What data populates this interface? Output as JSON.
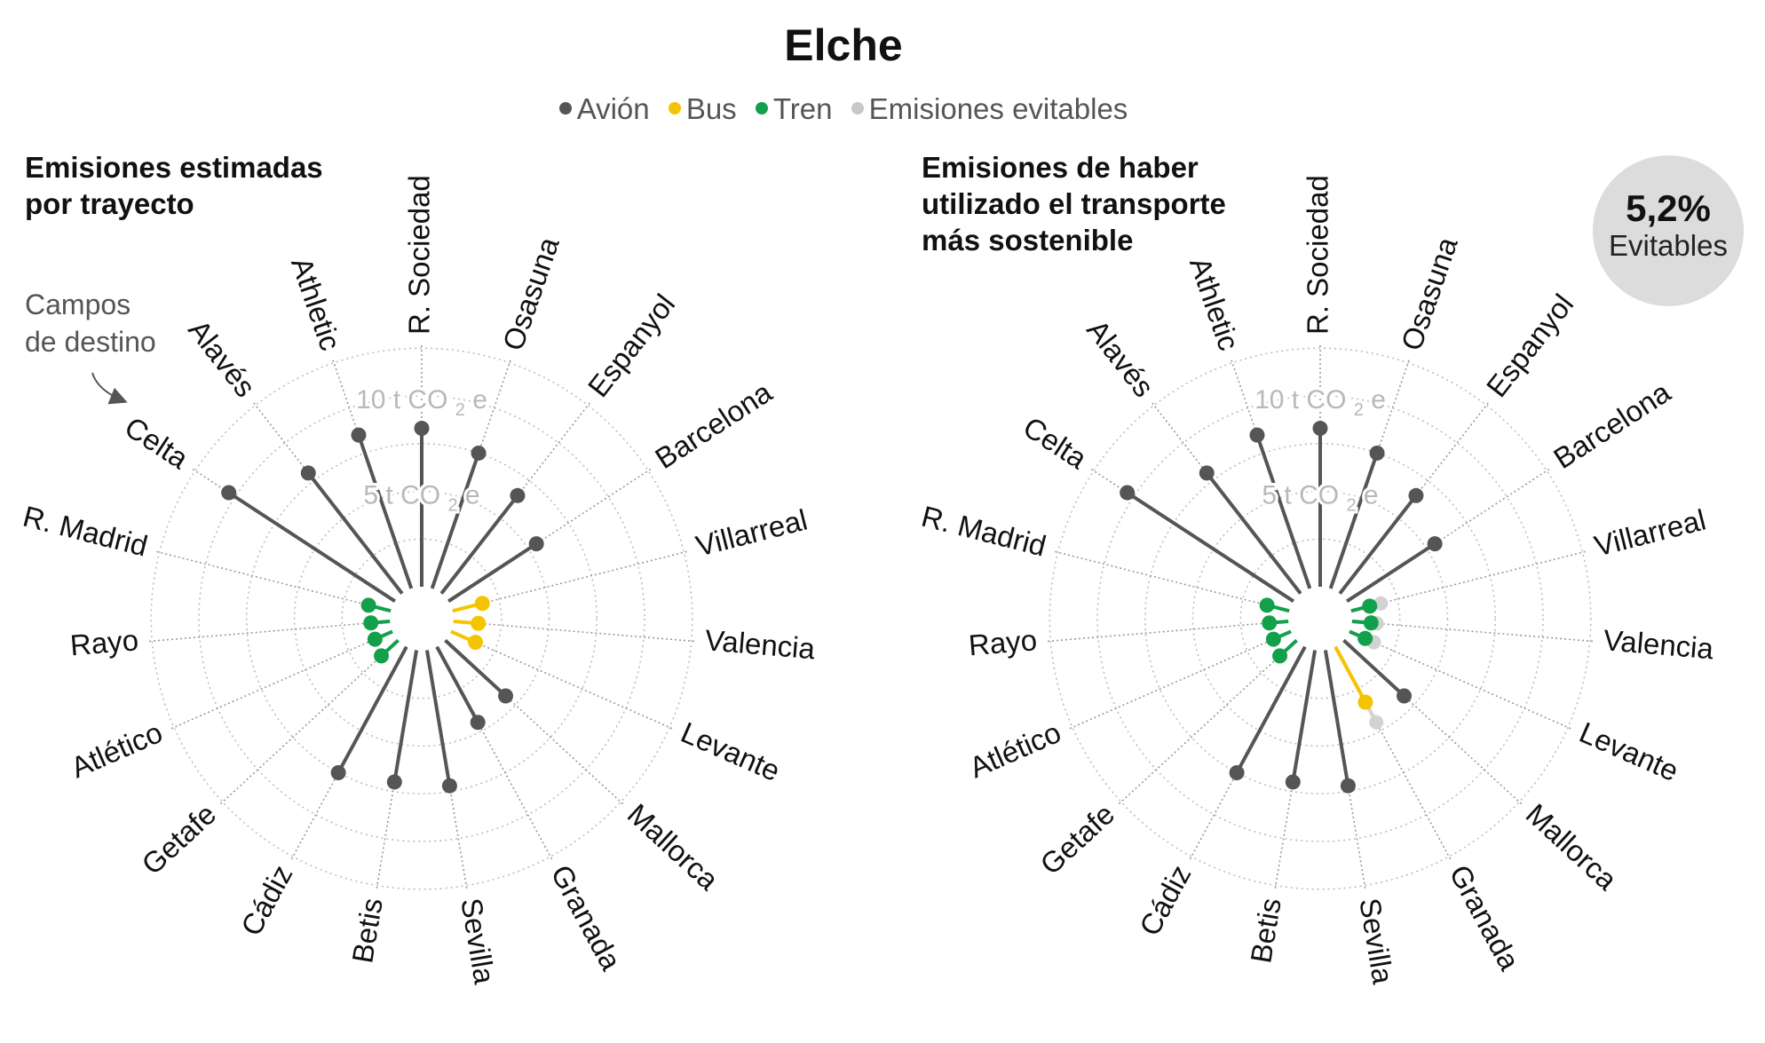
{
  "title": "Elche",
  "legend": [
    {
      "label": "Avión",
      "color": "#555555"
    },
    {
      "label": "Bus",
      "color": "#f5c400"
    },
    {
      "label": "Tren",
      "color": "#13a04a"
    },
    {
      "label": "Emisiones evitables",
      "color": "#c8c8c8"
    }
  ],
  "panels": {
    "left": {
      "heading": "Emisiones estimadas\npor trayecto"
    },
    "right": {
      "heading": "Emisiones de haber\nutilizado el transporte\nmás sostenible"
    }
  },
  "annotation": "Campos\nde destino",
  "badge": {
    "value": "5,2%",
    "label": "Evitables"
  },
  "axis_labels": {
    "ring_5": {
      "num": "5 t CO",
      "sub": "2",
      "unit": "e"
    },
    "ring_10": {
      "num": "10 t CO",
      "sub": "2",
      "unit": "e"
    }
  },
  "colors": {
    "avion": "#555555",
    "bus": "#f5c400",
    "tren": "#13a04a",
    "evitable": "#d2d2d2",
    "grid": "#bdbdbd"
  },
  "chart_data": [
    {
      "type": "radial-lollipop",
      "title": "Emisiones estimadas por trayecto",
      "unit": "t CO2e",
      "rings": [
        5,
        10
      ],
      "categories": [
        "R. Sociedad",
        "Osasuna",
        "Espanyol",
        "Barcelona",
        "Villarreal",
        "Valencia",
        "Levante",
        "Mallorca",
        "Granada",
        "Sevilla",
        "Betis",
        "Cádiz",
        "Getafe",
        "Atlético",
        "Rayo",
        "R. Madrid",
        "Celta",
        "Alavés",
        "Athletic"
      ],
      "modes": [
        "Avión",
        "Avión",
        "Avión",
        "Avión",
        "Bus",
        "Bus",
        "Bus",
        "Avión",
        "Avión",
        "Avión",
        "Avión",
        "Avión",
        "Tren",
        "Tren",
        "Tren",
        "Tren",
        "Avión",
        "Avión",
        "Avión"
      ],
      "values": [
        8.3,
        7.5,
        6.5,
        5.5,
        1.6,
        1.3,
        1.4,
        4.3,
        4.5,
        7.2,
        7.0,
        7.5,
        1.2,
        1.0,
        1.0,
        1.2,
        10.4,
        8.0,
        8.5
      ]
    },
    {
      "type": "radial-lollipop",
      "title": "Emisiones de haber utilizado el transporte más sostenible",
      "unit": "t CO2e",
      "rings": [
        5,
        10
      ],
      "categories": [
        "R. Sociedad",
        "Osasuna",
        "Espanyol",
        "Barcelona",
        "Villarreal",
        "Valencia",
        "Levante",
        "Mallorca",
        "Granada",
        "Sevilla",
        "Betis",
        "Cádiz",
        "Getafe",
        "Atlético",
        "Rayo",
        "R. Madrid",
        "Celta",
        "Alavés",
        "Athletic"
      ],
      "modes": [
        "Avión",
        "Avión",
        "Avión",
        "Avión",
        "Tren",
        "Tren",
        "Tren",
        "Avión",
        "Bus",
        "Avión",
        "Avión",
        "Avión",
        "Tren",
        "Tren",
        "Tren",
        "Tren",
        "Avión",
        "Avión",
        "Avión"
      ],
      "values": [
        8.3,
        7.5,
        6.5,
        5.5,
        1.0,
        1.0,
        0.9,
        4.3,
        3.3,
        7.2,
        7.0,
        7.5,
        1.2,
        1.0,
        1.0,
        1.2,
        10.4,
        8.0,
        8.5
      ],
      "avoidable": [
        null,
        null,
        null,
        null,
        1.6,
        1.3,
        1.4,
        null,
        4.5,
        null,
        null,
        null,
        null,
        null,
        null,
        null,
        null,
        null,
        null
      ]
    }
  ]
}
